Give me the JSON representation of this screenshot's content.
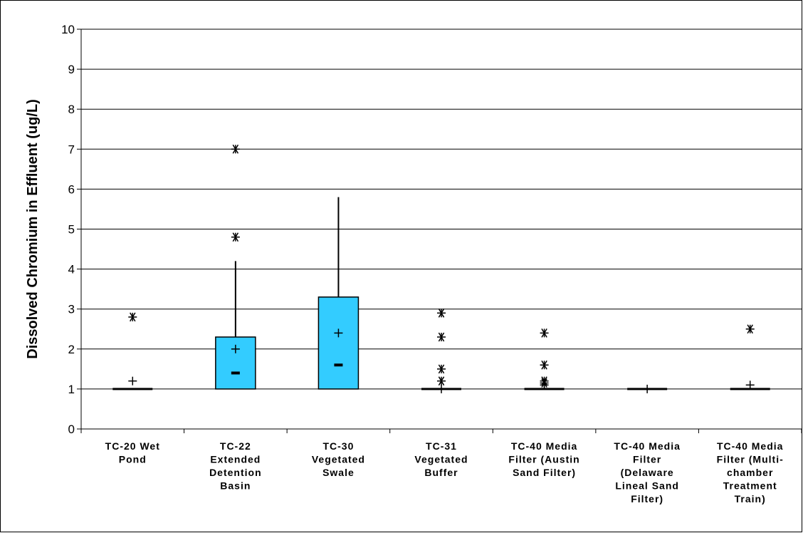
{
  "chart_data": {
    "type": "box",
    "title": "",
    "xlabel": "",
    "ylabel": "Dissolved Chromium in Effluent (ug/L)",
    "ylim": [
      0,
      10
    ],
    "yticks": [
      "0",
      "1",
      "2",
      "3",
      "4",
      "5",
      "6",
      "7",
      "8",
      "9",
      "10"
    ],
    "grid": true,
    "box_color": "#33CCFF",
    "categories": [
      [
        "TC-20 Wet",
        "Pond"
      ],
      [
        "TC-22",
        "Extended",
        "Detention",
        "Basin"
      ],
      [
        "TC-30",
        "Vegetated",
        "Swale"
      ],
      [
        "TC-31",
        "Vegetated",
        "Buffer"
      ],
      [
        "TC-40 Media",
        "Filter (Austin",
        "Sand Filter)"
      ],
      [
        "TC-40 Media",
        "Filter",
        "(Delaware",
        "Lineal Sand",
        "Filter)"
      ],
      [
        "TC-40 Media",
        "Filter (Multi-",
        "chamber",
        "Treatment",
        "Train)"
      ]
    ],
    "boxes": [
      {
        "whisker_low": 1.0,
        "q1": 1.0,
        "median": 1.0,
        "q3": 1.0,
        "whisker_high": 1.0,
        "mean": 1.2,
        "outliers": [
          2.8
        ]
      },
      {
        "whisker_low": 1.0,
        "q1": 1.0,
        "median": 1.4,
        "q3": 2.3,
        "whisker_high": 4.2,
        "mean": 2.0,
        "outliers": [
          4.8,
          7.0
        ]
      },
      {
        "whisker_low": 1.0,
        "q1": 1.0,
        "median": 1.6,
        "q3": 3.3,
        "whisker_high": 5.8,
        "mean": 2.4,
        "outliers": []
      },
      {
        "whisker_low": 1.0,
        "q1": 1.0,
        "median": 1.0,
        "q3": 1.0,
        "whisker_high": 1.0,
        "mean": 1.0,
        "outliers": [
          1.2,
          1.5,
          2.3,
          2.9
        ]
      },
      {
        "whisker_low": 1.0,
        "q1": 1.0,
        "median": 1.0,
        "q3": 1.0,
        "whisker_high": 1.0,
        "mean": 1.1,
        "outliers": [
          1.15,
          1.2,
          1.6,
          2.4
        ]
      },
      {
        "whisker_low": 1.0,
        "q1": 1.0,
        "median": 1.0,
        "q3": 1.0,
        "whisker_high": 1.0,
        "mean": 1.0,
        "outliers": []
      },
      {
        "whisker_low": 1.0,
        "q1": 1.0,
        "median": 1.0,
        "q3": 1.0,
        "whisker_high": 1.0,
        "mean": 1.1,
        "outliers": [
          2.5
        ]
      }
    ]
  }
}
